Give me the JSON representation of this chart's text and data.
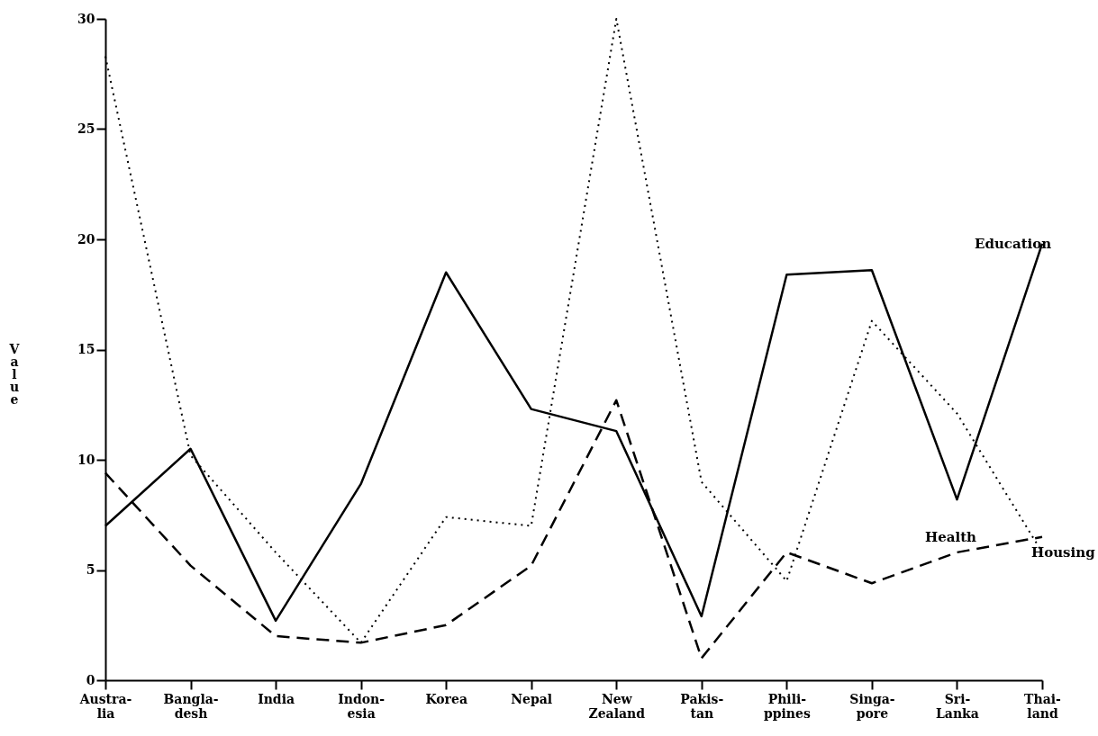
{
  "chart_data": {
    "type": "line",
    "ylabel": "Value",
    "categories": [
      "Austra-\nlia",
      "Bangla-\ndesh",
      "India",
      "Indon-\nesia",
      "Korea",
      "Nepal",
      "New\nZealand",
      "Pakis-\ntan",
      "Phili-\nppines",
      "Singa-\npore",
      "Sri-\nLanka",
      "Thai-\nland"
    ],
    "series": [
      {
        "name": "Education",
        "color": "#000000",
        "line_style": "solid",
        "values": [
          7.0,
          10.5,
          2.7,
          8.9,
          18.5,
          12.3,
          11.3,
          2.9,
          18.4,
          18.6,
          8.2,
          19.8
        ]
      },
      {
        "name": "Housing",
        "color": "#000000",
        "line_style": "dotted",
        "values": [
          28.3,
          10.2,
          5.8,
          1.7,
          7.4,
          7.0,
          30,
          9.0,
          4.5,
          16.3,
          12.1,
          5.8
        ]
      },
      {
        "name": "Health",
        "color": "#000000",
        "line_style": "dashed",
        "values": [
          9.4,
          5.2,
          2.0,
          1.7,
          2.5,
          5.2,
          12.7,
          1.0,
          5.8,
          4.4,
          5.8,
          6.5
        ]
      }
    ],
    "ylim": [
      0,
      30
    ],
    "yticks": [
      0,
      5,
      10,
      15,
      20,
      25,
      30
    ],
    "grid": false,
    "legend": false,
    "marker": "none"
  }
}
